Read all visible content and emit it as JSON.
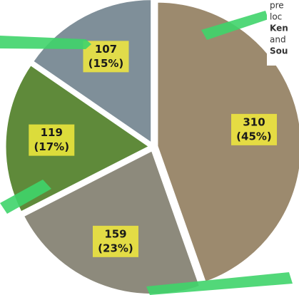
{
  "chart_data": {
    "type": "pie",
    "categories": [
      null,
      null,
      null,
      null
    ],
    "values": [
      310,
      159,
      119,
      107
    ],
    "percent_labels": [
      "(45%)",
      "(23%)",
      "(17%)",
      "(15%)"
    ],
    "colors": [
      "#9c8a6e",
      "#8d8a7c",
      "#5f8a3a",
      "#7f8f99"
    ],
    "side_text": [
      "pre",
      "loc",
      "Ken",
      "and",
      "Sou"
    ]
  }
}
